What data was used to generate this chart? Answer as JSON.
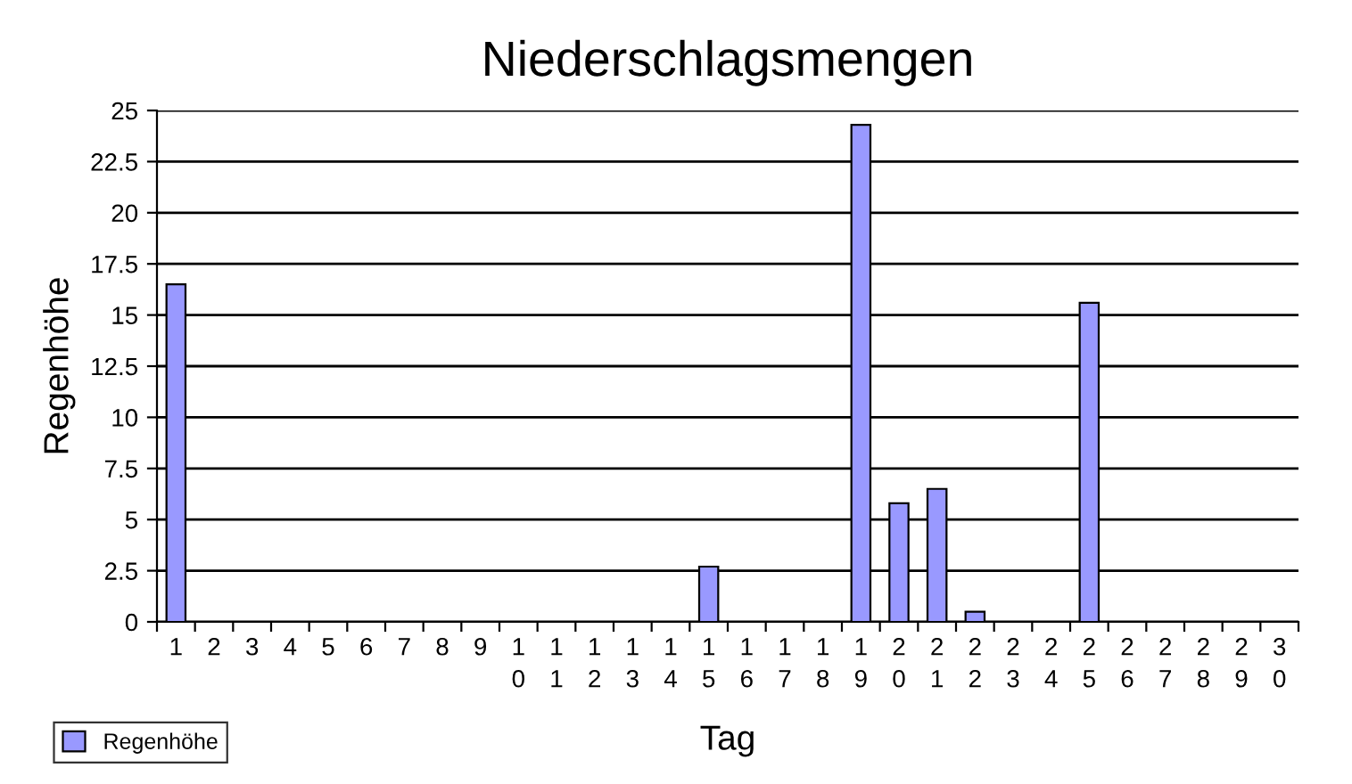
{
  "chart_data": {
    "type": "bar",
    "title": "Niederschlagsmengen",
    "xlabel": "Tag",
    "ylabel": "Regenhöhe",
    "categories": [
      "1",
      "2",
      "3",
      "4",
      "5",
      "6",
      "7",
      "8",
      "9",
      "10",
      "11",
      "12",
      "13",
      "14",
      "15",
      "16",
      "17",
      "18",
      "19",
      "20",
      "21",
      "22",
      "23",
      "24",
      "25",
      "26",
      "27",
      "28",
      "29",
      "30"
    ],
    "series": [
      {
        "name": "Regenhöhe",
        "color": "#9999ff",
        "values": [
          16.5,
          null,
          null,
          null,
          null,
          null,
          null,
          null,
          null,
          null,
          null,
          null,
          null,
          null,
          2.7,
          null,
          null,
          null,
          24.3,
          5.8,
          6.5,
          0.5,
          null,
          null,
          15.6,
          null,
          null,
          null,
          null,
          null
        ]
      }
    ],
    "ylim": [
      0,
      25
    ],
    "yticks": [
      0,
      {
        "value": 2.5,
        "label": "2.5"
      },
      5,
      {
        "value": 7.5,
        "label": "7.5"
      },
      10,
      {
        "value": 12.5,
        "label": "12.5"
      },
      15,
      {
        "value": 17.5,
        "label": "17.5"
      },
      20,
      {
        "value": 22.5,
        "label": "22.5"
      },
      25
    ],
    "grid": "y",
    "legend": "bottom left"
  }
}
